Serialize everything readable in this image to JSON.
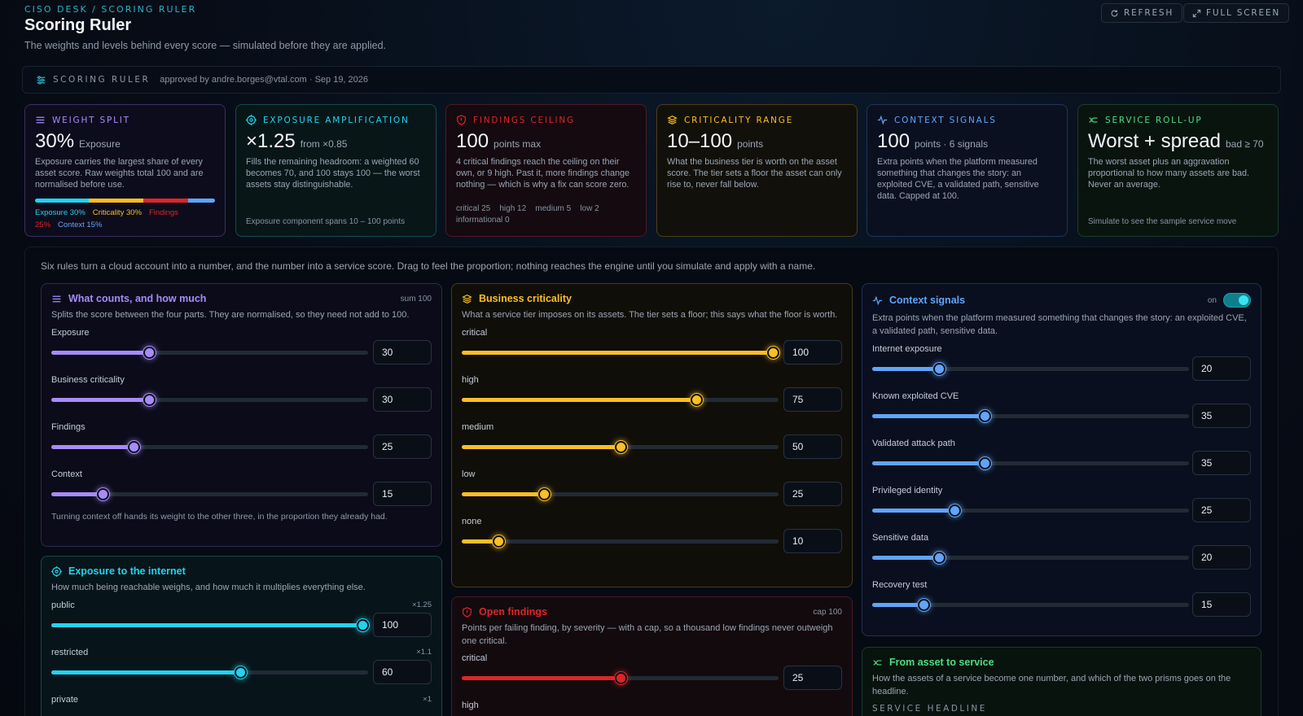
{
  "header": {
    "breadcrumb": "CISO DESK / SCORING RULER",
    "title": "Scoring Ruler",
    "subtitle": "The weights and levels behind every score — simulated before they are applied.",
    "refresh_label": "REFRESH",
    "fullscreen_label": "FULL SCREEN"
  },
  "banner": {
    "label": "SCORING RULER",
    "approval": "approved by andre.borges@vtal.com · Sep 19, 2026"
  },
  "cards": {
    "weight": {
      "title": "WEIGHT SPLIT",
      "big": "30%",
      "big_sub": "Exposure",
      "desc": "Exposure carries the largest share of every asset score. Raw weights total 100 and are normalised before use.",
      "legend": [
        {
          "label": "Exposure 30%",
          "value": 30,
          "color": "#22d3ee"
        },
        {
          "label": "Criticality 30%",
          "value": 30,
          "color": "#fbbf24"
        },
        {
          "label": "Findings 25%",
          "value": 25,
          "color": "#dc2626"
        },
        {
          "label": "Context 15%",
          "value": 15,
          "color": "#60a5fa"
        }
      ]
    },
    "exposure": {
      "title": "EXPOSURE AMPLIFICATION",
      "big": "×1.25",
      "big_sub": "from ×0.85",
      "desc": "Fills the remaining headroom: a weighted 60 becomes 70, and 100 stays 100 — the worst assets stay distinguishable.",
      "foot": "Exposure component spans 10 – 100 points"
    },
    "findings": {
      "title": "FINDINGS CEILING",
      "big": "100",
      "big_sub": "points max",
      "desc": "4 critical findings reach the ceiling on their own, or 9 high. Past it, more findings change nothing — which is why a fix can score zero.",
      "foot_line1": "critical 25    high 12    medium 5    low 2",
      "foot_line2": "informational 0"
    },
    "criticality": {
      "title": "CRITICALITY RANGE",
      "big": "10–100",
      "big_sub": "points",
      "desc": "What the business tier is worth on the asset score. The tier sets a floor the asset can only rise to, never fall below."
    },
    "context": {
      "title": "CONTEXT SIGNALS",
      "big": "100",
      "big_sub": "points · 6 signals",
      "desc": "Extra points when the platform measured something that changes the story: an exploited CVE, a validated path, sensitive data. Capped at 100."
    },
    "service": {
      "title": "SERVICE ROLL-UP",
      "big": "Worst + spread",
      "big_sub": "bad ≥ 70",
      "desc": "The worst asset plus an aggravation proportional to how many assets are bad. Never an average.",
      "foot": "Simulate to see the sample service move"
    }
  },
  "intro": "Six rules turn a cloud account into a number, and the number into a service score. Drag to feel the proportion; nothing reaches the engine until you simulate and apply with a name.",
  "weights_panel": {
    "title": "What counts, and how much",
    "meta": "sum 100",
    "desc": "Splits the score between the four parts. They are normalised, so they need not add to 100.",
    "rows": [
      {
        "label": "Exposure",
        "value": 30
      },
      {
        "label": "Business criticality",
        "value": 30
      },
      {
        "label": "Findings",
        "value": 25
      },
      {
        "label": "Context",
        "value": 15
      }
    ],
    "max": 100,
    "note": "Turning context off hands its weight to the other three, in the proportion they already had."
  },
  "exposure_panel": {
    "title": "Exposure to the internet",
    "desc": "How much being reachable weighs, and how much it multiplies everything else.",
    "rows": [
      {
        "label": "public",
        "mult": "×1.25",
        "value": 100
      },
      {
        "label": "restricted",
        "mult": "×1.1",
        "value": 60
      },
      {
        "label": "private",
        "mult": "×1",
        "value": ""
      }
    ],
    "max": 100
  },
  "criticality_panel": {
    "title": "Business criticality",
    "desc": "What a service tier imposes on its assets. The tier sets a floor; this says what the floor is worth.",
    "rows": [
      {
        "label": "critical",
        "value": 100
      },
      {
        "label": "high",
        "value": 75
      },
      {
        "label": "medium",
        "value": 50
      },
      {
        "label": "low",
        "value": 25
      },
      {
        "label": "none",
        "value": 10
      }
    ],
    "max": 100
  },
  "findings_panel": {
    "title": "Open findings",
    "meta": "cap 100",
    "desc": "Points per failing finding, by severity — with a cap, so a thousand low findings never outweigh one critical.",
    "rows": [
      {
        "label": "critical",
        "value": 25
      },
      {
        "label": "high",
        "value": ""
      }
    ],
    "max": 50
  },
  "context_panel": {
    "title": "Context signals",
    "toggle_label": "on",
    "desc": "Extra points when the platform measured something that changes the story: an exploited CVE, a validated path, sensitive data.",
    "rows": [
      {
        "label": "Internet exposure",
        "value": 20
      },
      {
        "label": "Known exploited CVE",
        "value": 35
      },
      {
        "label": "Validated attack path",
        "value": 35
      },
      {
        "label": "Privileged identity",
        "value": 25
      },
      {
        "label": "Sensitive data",
        "value": 20
      },
      {
        "label": "Recovery test",
        "value": 15
      }
    ],
    "max": 100
  },
  "service_panel": {
    "title": "From asset to service",
    "desc": "How the assets of a service become one number, and which of the two prisms goes on the headline.",
    "sub_label": "SERVICE HEADLINE"
  },
  "colors": {
    "purple": "#a78bfa",
    "cyan": "#22d3ee",
    "yellow": "#fbbf24",
    "red": "#dc2626",
    "blue": "#60a5fa",
    "green": "#4ade80"
  }
}
